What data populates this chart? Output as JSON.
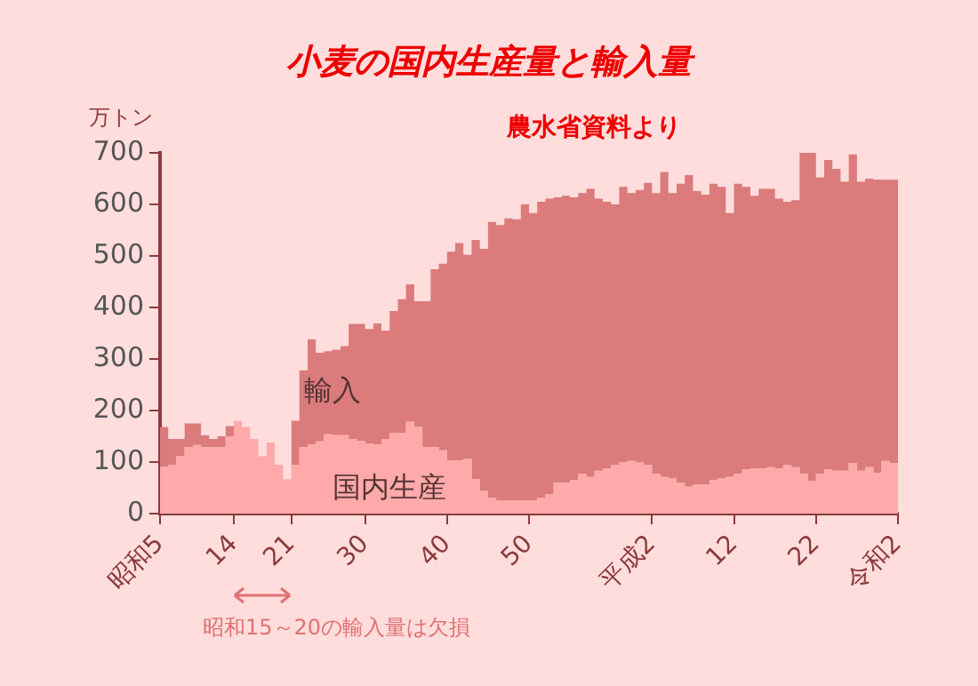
{
  "chart_data": {
    "type": "area",
    "stacked": true,
    "title": "小麦の国内生産量と輸入量",
    "ylabel": "万トン",
    "annotations": [
      "農水省資料より",
      "昭和15～20の輸入量は欠損"
    ],
    "categories": [
      "昭和5",
      null,
      null,
      null,
      null,
      null,
      null,
      null,
      null,
      "14",
      null,
      null,
      null,
      null,
      null,
      null,
      "21",
      null,
      null,
      null,
      null,
      null,
      null,
      null,
      null,
      "30",
      null,
      null,
      null,
      null,
      null,
      null,
      null,
      null,
      null,
      "40",
      null,
      null,
      null,
      null,
      null,
      null,
      null,
      null,
      null,
      "50",
      null,
      null,
      null,
      null,
      null,
      null,
      null,
      null,
      null,
      null,
      null,
      null,
      null,
      null,
      "平成2",
      null,
      null,
      null,
      null,
      null,
      null,
      null,
      null,
      null,
      "12",
      null,
      null,
      null,
      null,
      null,
      null,
      null,
      null,
      null,
      "22",
      null,
      null,
      null,
      null,
      null,
      null,
      null,
      null,
      null,
      "令和2"
    ],
    "series": [
      {
        "name": "国内生産",
        "color": "#ffaaaa",
        "values": [
          91,
          91,
          95,
          111,
          129,
          133,
          129,
          129,
          129,
          150,
          180,
          168,
          145,
          111,
          138,
          95,
          67,
          95,
          129,
          134,
          140,
          154,
          152,
          152,
          145,
          141,
          136,
          134,
          145,
          157,
          157,
          178,
          168,
          129,
          129,
          123,
          103,
          103,
          106,
          67,
          44,
          31,
          25,
          25,
          25,
          25,
          25,
          31,
          37,
          60,
          60,
          65,
          77,
          71,
          83,
          88,
          94,
          100,
          102,
          100,
          94,
          77,
          71,
          68,
          60,
          52,
          56,
          56,
          65,
          68,
          71,
          77,
          86,
          88,
          88,
          90,
          88,
          94,
          90,
          77,
          63,
          77,
          86,
          83,
          83,
          98,
          83,
          90,
          79,
          102,
          98
        ]
      },
      {
        "name": "輸入",
        "color": "#db7b7b",
        "values": [
          64,
          77,
          50,
          34,
          46,
          42,
          23,
          16,
          21,
          20,
          null,
          null,
          null,
          null,
          null,
          null,
          67,
          85,
          149,
          204,
          172,
          161,
          166,
          173,
          223,
          227,
          222,
          235,
          210,
          236,
          259,
          267,
          244,
          283,
          345,
          362,
          405,
          422,
          396,
          464,
          470,
          535,
          535,
          548,
          546,
          575,
          558,
          574,
          574,
          554,
          557,
          549,
          545,
          559,
          528,
          517,
          506,
          534,
          520,
          528,
          548,
          545,
          592,
          554,
          580,
          605,
          570,
          563,
          575,
          566,
          512,
          563,
          548,
          529,
          542,
          540,
          523,
          511,
          518,
          623,
          637,
          575,
          600,
          586,
          561,
          599,
          561,
          560,
          569,
          546,
          550
        ]
      }
    ],
    "ylim": [
      0,
      700
    ],
    "yticks": [
      0,
      100,
      200,
      300,
      400,
      500,
      600,
      700
    ],
    "grid": false,
    "legend": false
  }
}
